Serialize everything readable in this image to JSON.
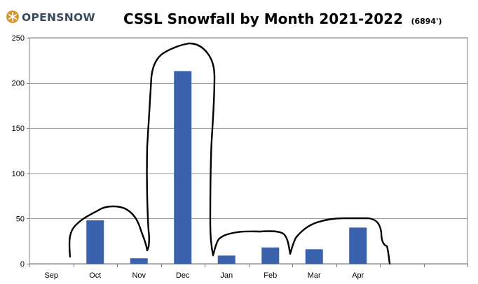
{
  "logo": {
    "text": "OPENSNOW"
  },
  "title": {
    "main": "CSSL Snowfall by Month 2021-2022",
    "elevation": "(6894')"
  },
  "colors": {
    "bar": "#3a61ab",
    "grid": "#9a9a9a",
    "axis": "#7f7f7f",
    "annotation": "#000000",
    "logo_text": "#3b4a5a",
    "logo_mark": "#d8962e"
  },
  "chart_data": {
    "type": "bar",
    "title": "CSSL Snowfall by Month 2021-2022 (6894')",
    "xlabel": "",
    "ylabel": "",
    "categories": [
      "Sep",
      "Oct",
      "Nov",
      "Dec",
      "Jan",
      "Feb",
      "Mar",
      "Apr",
      "",
      ""
    ],
    "values": [
      0,
      48,
      6,
      213,
      9,
      18,
      16,
      40,
      null,
      null
    ],
    "ylim": [
      0,
      250
    ],
    "yticks": [
      0,
      50,
      100,
      150,
      200,
      250
    ],
    "grid": true,
    "legend": "none",
    "annotations": [
      "hand-drawn black outline tracing over the bars"
    ]
  }
}
